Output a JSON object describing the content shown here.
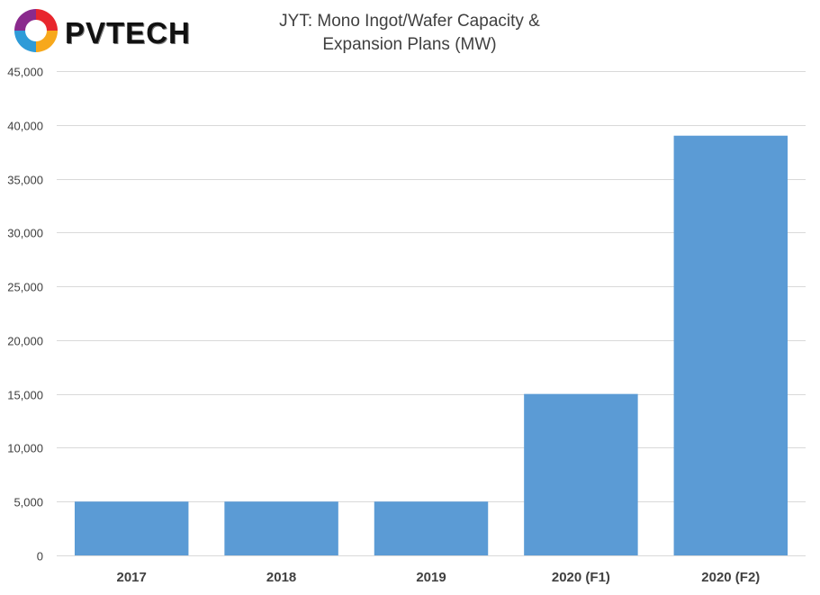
{
  "logo": {
    "text": "PVTECH"
  },
  "title_lines": [
    "JYT: Mono Ingot/Wafer Capacity &",
    "Expansion Plans (MW)"
  ],
  "chart_data": {
    "type": "bar",
    "title": "JYT: Mono Ingot/Wafer Capacity & Expansion Plans (MW)",
    "categories": [
      "2017",
      "2018",
      "2019",
      "2020 (F1)",
      "2020 (F2)"
    ],
    "values": [
      5000,
      5000,
      5000,
      15000,
      39000
    ],
    "ylim": [
      0,
      45000
    ],
    "yticks": [
      0,
      5000,
      10000,
      15000,
      20000,
      25000,
      30000,
      35000,
      40000,
      45000
    ],
    "ytick_labels": [
      "0",
      "5,000",
      "10,000",
      "15,000",
      "20,000",
      "25,000",
      "30,000",
      "35,000",
      "40,000",
      "45,000"
    ],
    "xlabel": "",
    "ylabel": "",
    "grid": true,
    "legend": "none",
    "bar_color": "#5b9bd5",
    "grid_color": "#d9d9d9"
  }
}
